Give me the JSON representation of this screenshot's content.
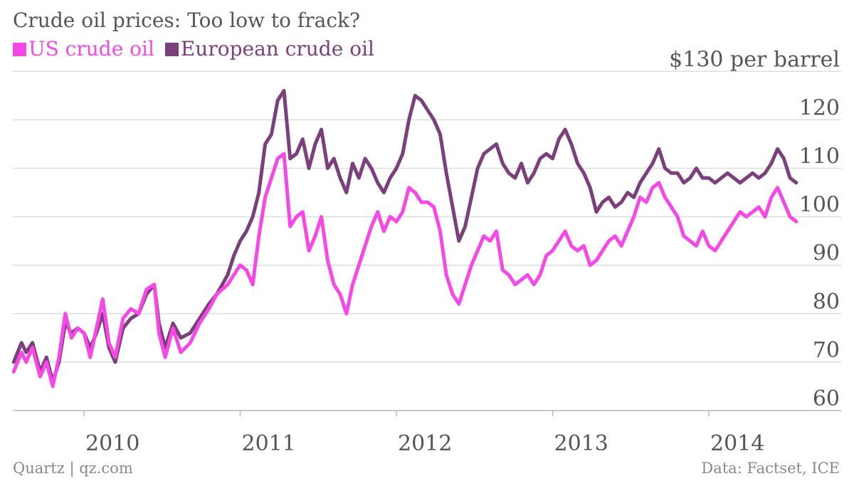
{
  "title": "Crude oil prices: Too low to frack?",
  "footer": {
    "source_left": "Quartz | qz.com",
    "source_right": "Data: Factset, ICE"
  },
  "colors": {
    "us": "#F548E6",
    "europe": "#7B3F7B",
    "grid": "#DDDDDD",
    "text": "#555555"
  },
  "chart_data": {
    "type": "line",
    "title": "Crude oil prices: Too low to frack?",
    "ylabel": "$130 per barrel",
    "ylim": [
      55,
      130
    ],
    "yticks": [
      60,
      70,
      80,
      90,
      100,
      110,
      120
    ],
    "y_top_label": "$130 per barrel",
    "xlim": [
      2009.55,
      2014.85
    ],
    "xticks": [
      2010,
      2011,
      2012,
      2013,
      2014
    ],
    "x_tick_labels": [
      "2010",
      "2011",
      "2012",
      "2013",
      "2014"
    ],
    "grid": true,
    "legend_position": "top-left",
    "series": [
      {
        "name": "US crude oil",
        "color": "#F548E6",
        "points": [
          [
            2009.55,
            68
          ],
          [
            2009.6,
            72
          ],
          [
            2009.63,
            70
          ],
          [
            2009.67,
            73
          ],
          [
            2009.72,
            67
          ],
          [
            2009.76,
            70
          ],
          [
            2009.8,
            65
          ],
          [
            2009.84,
            71
          ],
          [
            2009.88,
            80
          ],
          [
            2009.92,
            75
          ],
          [
            2009.96,
            77
          ],
          [
            2010.0,
            76
          ],
          [
            2010.04,
            71
          ],
          [
            2010.08,
            77
          ],
          [
            2010.12,
            83
          ],
          [
            2010.16,
            74
          ],
          [
            2010.2,
            71
          ],
          [
            2010.25,
            79
          ],
          [
            2010.3,
            81
          ],
          [
            2010.35,
            80
          ],
          [
            2010.4,
            85
          ],
          [
            2010.45,
            86
          ],
          [
            2010.48,
            76
          ],
          [
            2010.52,
            71
          ],
          [
            2010.57,
            77
          ],
          [
            2010.62,
            72
          ],
          [
            2010.68,
            74
          ],
          [
            2010.74,
            78
          ],
          [
            2010.8,
            81
          ],
          [
            2010.85,
            84
          ],
          [
            2010.92,
            86
          ],
          [
            2010.96,
            88
          ],
          [
            2011.0,
            90
          ],
          [
            2011.04,
            89
          ],
          [
            2011.08,
            86
          ],
          [
            2011.12,
            96
          ],
          [
            2011.16,
            104
          ],
          [
            2011.2,
            108
          ],
          [
            2011.24,
            112
          ],
          [
            2011.28,
            113
          ],
          [
            2011.32,
            98
          ],
          [
            2011.36,
            100
          ],
          [
            2011.4,
            101
          ],
          [
            2011.44,
            93
          ],
          [
            2011.48,
            96
          ],
          [
            2011.52,
            100
          ],
          [
            2011.56,
            91
          ],
          [
            2011.6,
            86
          ],
          [
            2011.64,
            84
          ],
          [
            2011.68,
            80
          ],
          [
            2011.72,
            86
          ],
          [
            2011.76,
            90
          ],
          [
            2011.8,
            94
          ],
          [
            2011.84,
            98
          ],
          [
            2011.88,
            101
          ],
          [
            2011.92,
            97
          ],
          [
            2011.96,
            100
          ],
          [
            2012.0,
            99
          ],
          [
            2012.04,
            101
          ],
          [
            2012.08,
            106
          ],
          [
            2012.12,
            105
          ],
          [
            2012.16,
            103
          ],
          [
            2012.2,
            103
          ],
          [
            2012.24,
            102
          ],
          [
            2012.28,
            97
          ],
          [
            2012.32,
            88
          ],
          [
            2012.36,
            84
          ],
          [
            2012.4,
            82
          ],
          [
            2012.44,
            86
          ],
          [
            2012.48,
            90
          ],
          [
            2012.52,
            93
          ],
          [
            2012.56,
            96
          ],
          [
            2012.6,
            95
          ],
          [
            2012.64,
            97
          ],
          [
            2012.68,
            89
          ],
          [
            2012.72,
            88
          ],
          [
            2012.76,
            86
          ],
          [
            2012.8,
            87
          ],
          [
            2012.84,
            88
          ],
          [
            2012.88,
            86
          ],
          [
            2012.92,
            88
          ],
          [
            2012.96,
            92
          ],
          [
            2013.0,
            93
          ],
          [
            2013.04,
            95
          ],
          [
            2013.08,
            97
          ],
          [
            2013.12,
            94
          ],
          [
            2013.16,
            93
          ],
          [
            2013.2,
            94
          ],
          [
            2013.24,
            90
          ],
          [
            2013.28,
            91
          ],
          [
            2013.32,
            93
          ],
          [
            2013.36,
            95
          ],
          [
            2013.4,
            96
          ],
          [
            2013.44,
            94
          ],
          [
            2013.48,
            97
          ],
          [
            2013.52,
            100
          ],
          [
            2013.56,
            104
          ],
          [
            2013.6,
            103
          ],
          [
            2013.64,
            106
          ],
          [
            2013.68,
            107
          ],
          [
            2013.72,
            104
          ],
          [
            2013.76,
            102
          ],
          [
            2013.8,
            100
          ],
          [
            2013.84,
            96
          ],
          [
            2013.88,
            95
          ],
          [
            2013.92,
            94
          ],
          [
            2013.96,
            97
          ],
          [
            2014.0,
            94
          ],
          [
            2014.04,
            93
          ],
          [
            2014.08,
            95
          ],
          [
            2014.12,
            97
          ],
          [
            2014.16,
            99
          ],
          [
            2014.2,
            101
          ],
          [
            2014.24,
            100
          ],
          [
            2014.28,
            101
          ],
          [
            2014.32,
            102
          ],
          [
            2014.36,
            100
          ],
          [
            2014.4,
            104
          ],
          [
            2014.44,
            106
          ],
          [
            2014.48,
            103
          ],
          [
            2014.52,
            100
          ],
          [
            2014.56,
            99
          ]
        ]
      },
      {
        "name": "European crude oil",
        "color": "#7B3F7B",
        "points": [
          [
            2009.55,
            70
          ],
          [
            2009.6,
            74
          ],
          [
            2009.63,
            72
          ],
          [
            2009.67,
            74
          ],
          [
            2009.72,
            68
          ],
          [
            2009.76,
            71
          ],
          [
            2009.8,
            66
          ],
          [
            2009.84,
            70
          ],
          [
            2009.88,
            78
          ],
          [
            2009.92,
            76
          ],
          [
            2009.96,
            77
          ],
          [
            2010.0,
            76
          ],
          [
            2010.04,
            73
          ],
          [
            2010.08,
            76
          ],
          [
            2010.12,
            80
          ],
          [
            2010.16,
            73
          ],
          [
            2010.2,
            70
          ],
          [
            2010.25,
            77
          ],
          [
            2010.3,
            79
          ],
          [
            2010.35,
            80
          ],
          [
            2010.4,
            84
          ],
          [
            2010.45,
            86
          ],
          [
            2010.48,
            78
          ],
          [
            2010.52,
            73
          ],
          [
            2010.57,
            78
          ],
          [
            2010.62,
            75
          ],
          [
            2010.68,
            76
          ],
          [
            2010.74,
            79
          ],
          [
            2010.8,
            82
          ],
          [
            2010.85,
            84
          ],
          [
            2010.92,
            88
          ],
          [
            2010.96,
            92
          ],
          [
            2011.0,
            95
          ],
          [
            2011.04,
            97
          ],
          [
            2011.08,
            100
          ],
          [
            2011.12,
            105
          ],
          [
            2011.16,
            115
          ],
          [
            2011.2,
            117
          ],
          [
            2011.24,
            124
          ],
          [
            2011.28,
            126
          ],
          [
            2011.32,
            112
          ],
          [
            2011.36,
            113
          ],
          [
            2011.4,
            116
          ],
          [
            2011.44,
            110
          ],
          [
            2011.48,
            115
          ],
          [
            2011.52,
            118
          ],
          [
            2011.56,
            110
          ],
          [
            2011.6,
            112
          ],
          [
            2011.64,
            108
          ],
          [
            2011.68,
            105
          ],
          [
            2011.72,
            111
          ],
          [
            2011.76,
            108
          ],
          [
            2011.8,
            112
          ],
          [
            2011.84,
            110
          ],
          [
            2011.88,
            107
          ],
          [
            2011.92,
            105
          ],
          [
            2011.96,
            108
          ],
          [
            2012.0,
            110
          ],
          [
            2012.04,
            113
          ],
          [
            2012.08,
            120
          ],
          [
            2012.12,
            125
          ],
          [
            2012.16,
            124
          ],
          [
            2012.2,
            122
          ],
          [
            2012.24,
            120
          ],
          [
            2012.28,
            117
          ],
          [
            2012.32,
            109
          ],
          [
            2012.36,
            102
          ],
          [
            2012.4,
            95
          ],
          [
            2012.44,
            98
          ],
          [
            2012.48,
            104
          ],
          [
            2012.52,
            110
          ],
          [
            2012.56,
            113
          ],
          [
            2012.6,
            114
          ],
          [
            2012.64,
            115
          ],
          [
            2012.68,
            111
          ],
          [
            2012.72,
            109
          ],
          [
            2012.76,
            108
          ],
          [
            2012.8,
            111
          ],
          [
            2012.84,
            107
          ],
          [
            2012.88,
            109
          ],
          [
            2012.92,
            112
          ],
          [
            2012.96,
            113
          ],
          [
            2013.0,
            112
          ],
          [
            2013.04,
            116
          ],
          [
            2013.08,
            118
          ],
          [
            2013.12,
            115
          ],
          [
            2013.16,
            111
          ],
          [
            2013.2,
            109
          ],
          [
            2013.24,
            106
          ],
          [
            2013.28,
            101
          ],
          [
            2013.32,
            103
          ],
          [
            2013.36,
            104
          ],
          [
            2013.4,
            102
          ],
          [
            2013.44,
            103
          ],
          [
            2013.48,
            105
          ],
          [
            2013.52,
            104
          ],
          [
            2013.56,
            107
          ],
          [
            2013.6,
            109
          ],
          [
            2013.64,
            111
          ],
          [
            2013.68,
            114
          ],
          [
            2013.72,
            110
          ],
          [
            2013.76,
            109
          ],
          [
            2013.8,
            109
          ],
          [
            2013.84,
            107
          ],
          [
            2013.88,
            108
          ],
          [
            2013.92,
            110
          ],
          [
            2013.96,
            108
          ],
          [
            2014.0,
            108
          ],
          [
            2014.04,
            107
          ],
          [
            2014.08,
            108
          ],
          [
            2014.12,
            109
          ],
          [
            2014.16,
            108
          ],
          [
            2014.2,
            107
          ],
          [
            2014.24,
            108
          ],
          [
            2014.28,
            109
          ],
          [
            2014.32,
            108
          ],
          [
            2014.36,
            109
          ],
          [
            2014.4,
            111
          ],
          [
            2014.44,
            114
          ],
          [
            2014.48,
            112
          ],
          [
            2014.52,
            108
          ],
          [
            2014.56,
            107
          ]
        ]
      }
    ]
  }
}
